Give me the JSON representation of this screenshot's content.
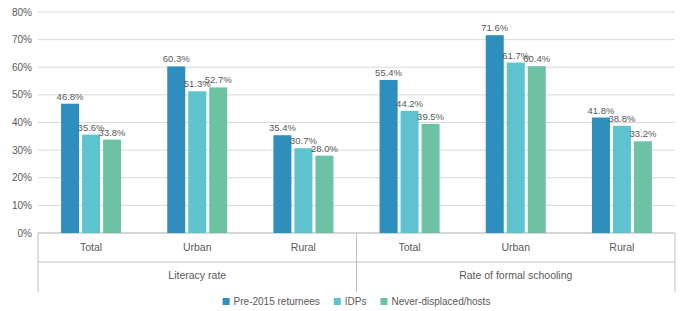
{
  "chart_data": {
    "type": "bar",
    "categories": [
      "Total",
      "Urban",
      "Rural",
      "Total",
      "Urban",
      "Rural"
    ],
    "category_groups": [
      {
        "name": "Literacy rate",
        "count": 3
      },
      {
        "name": "Rate of formal schooling",
        "count": 3
      }
    ],
    "series": [
      {
        "name": "Pre-2015 returnees",
        "color": "#2e8fbf",
        "values": [
          46.8,
          60.3,
          35.4,
          55.4,
          71.6,
          41.8
        ],
        "value_labels": [
          "46.8%",
          "60.3%",
          "35.4%",
          "55.4%",
          "71.6%",
          "41.8%"
        ]
      },
      {
        "name": "IDPs",
        "color": "#5ec3cf",
        "values": [
          35.6,
          51.3,
          30.7,
          44.2,
          61.7,
          38.8
        ],
        "value_labels": [
          "35.6%",
          "51.3%",
          "30.7%",
          "44.2%",
          "61.7%",
          "38.8%"
        ]
      },
      {
        "name": "Never-displaced/hosts",
        "color": "#6dc2a4",
        "values": [
          33.8,
          52.7,
          28.0,
          39.5,
          60.4,
          33.2
        ],
        "value_labels": [
          "33.8%",
          "52.7%",
          "28.0%",
          "39.5%",
          "60.4%",
          "33.2%"
        ]
      }
    ],
    "ylim": [
      0,
      80
    ],
    "yticks": [
      {
        "value": 0,
        "label": "0%"
      },
      {
        "value": 10,
        "label": "10%"
      },
      {
        "value": 20,
        "label": "20%"
      },
      {
        "value": 30,
        "label": "30%"
      },
      {
        "value": 40,
        "label": "40%"
      },
      {
        "value": 50,
        "label": "50%"
      },
      {
        "value": 60,
        "label": "60%"
      },
      {
        "value": 70,
        "label": "70%"
      },
      {
        "value": 80,
        "label": "80%"
      }
    ],
    "grid": true,
    "data_labels": true,
    "legend": "bottom"
  }
}
